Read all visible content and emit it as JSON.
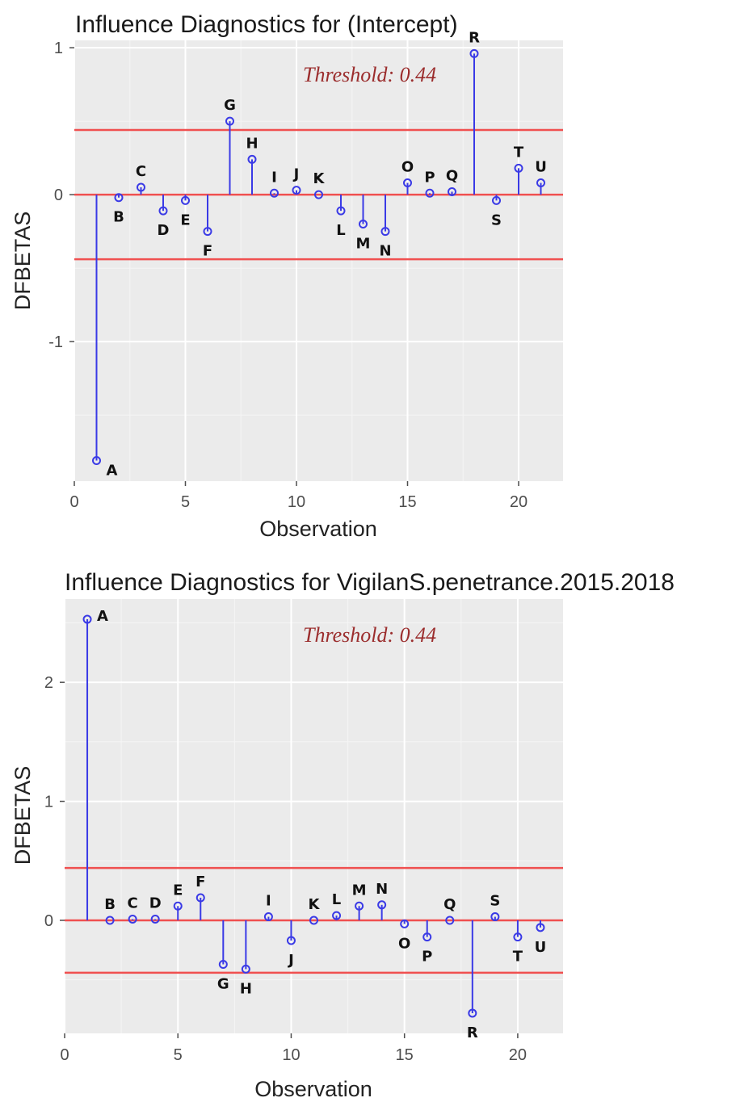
{
  "colors": {
    "panel": "#ebebeb",
    "grid_major": "#ffffff",
    "grid_minor": "#f5f5f5",
    "stem": "#3a3ae6",
    "point": "#3a3ae6",
    "threshold_line": "#f05050",
    "threshold_text": "#9b2d2d",
    "tick": "#4d4d4d"
  },
  "chart_data": [
    {
      "type": "lollipop",
      "title": "Influence Diagnostics for (Intercept)",
      "xlabel": "Observation",
      "ylabel": "DFBETAS",
      "threshold_text": "Threshold: 0.44",
      "threshold": 0.44,
      "xlim": [
        0,
        22
      ],
      "ylim": [
        -1.95,
        1.05
      ],
      "xticks": [
        0,
        5,
        10,
        15,
        20
      ],
      "yticks": [
        -1,
        0,
        1
      ],
      "grid": true,
      "points": [
        {
          "x": 1,
          "y": -1.81,
          "label": "A"
        },
        {
          "x": 2,
          "y": -0.02,
          "label": "B"
        },
        {
          "x": 3,
          "y": 0.05,
          "label": "C"
        },
        {
          "x": 4,
          "y": -0.11,
          "label": "D"
        },
        {
          "x": 5,
          "y": -0.04,
          "label": "E"
        },
        {
          "x": 6,
          "y": -0.25,
          "label": "F"
        },
        {
          "x": 7,
          "y": 0.5,
          "label": "G"
        },
        {
          "x": 8,
          "y": 0.24,
          "label": "H"
        },
        {
          "x": 9,
          "y": 0.01,
          "label": "I"
        },
        {
          "x": 10,
          "y": 0.03,
          "label": "J"
        },
        {
          "x": 11,
          "y": 0.0,
          "label": "K"
        },
        {
          "x": 12,
          "y": -0.11,
          "label": "L"
        },
        {
          "x": 13,
          "y": -0.2,
          "label": "M"
        },
        {
          "x": 14,
          "y": -0.25,
          "label": "N"
        },
        {
          "x": 15,
          "y": 0.08,
          "label": "O"
        },
        {
          "x": 16,
          "y": 0.01,
          "label": "P"
        },
        {
          "x": 17,
          "y": 0.02,
          "label": "Q"
        },
        {
          "x": 18,
          "y": 0.96,
          "label": "R"
        },
        {
          "x": 19,
          "y": -0.04,
          "label": "S"
        },
        {
          "x": 20,
          "y": 0.18,
          "label": "T"
        },
        {
          "x": 21,
          "y": 0.08,
          "label": "U"
        }
      ]
    },
    {
      "type": "lollipop",
      "title": "Influence Diagnostics for VigilanS.penetrance.2015.2018",
      "xlabel": "Observation",
      "ylabel": "DFBETAS",
      "threshold_text": "Threshold: 0.44",
      "threshold": 0.44,
      "xlim": [
        0,
        22
      ],
      "ylim": [
        -0.95,
        2.7
      ],
      "xticks": [
        0,
        5,
        10,
        15,
        20
      ],
      "yticks": [
        0,
        1,
        2
      ],
      "grid": true,
      "points": [
        {
          "x": 1,
          "y": 2.53,
          "label": "A"
        },
        {
          "x": 2,
          "y": 0.0,
          "label": "B"
        },
        {
          "x": 3,
          "y": 0.01,
          "label": "C"
        },
        {
          "x": 4,
          "y": 0.01,
          "label": "D"
        },
        {
          "x": 5,
          "y": 0.12,
          "label": "E"
        },
        {
          "x": 6,
          "y": 0.19,
          "label": "F"
        },
        {
          "x": 7,
          "y": -0.37,
          "label": "G"
        },
        {
          "x": 8,
          "y": -0.41,
          "label": "H"
        },
        {
          "x": 9,
          "y": 0.03,
          "label": "I"
        },
        {
          "x": 10,
          "y": -0.17,
          "label": "J"
        },
        {
          "x": 11,
          "y": 0.0,
          "label": "K"
        },
        {
          "x": 12,
          "y": 0.04,
          "label": "L"
        },
        {
          "x": 13,
          "y": 0.12,
          "label": "M"
        },
        {
          "x": 14,
          "y": 0.13,
          "label": "N"
        },
        {
          "x": 15,
          "y": -0.03,
          "label": "O"
        },
        {
          "x": 16,
          "y": -0.14,
          "label": "P"
        },
        {
          "x": 17,
          "y": 0.0,
          "label": "Q"
        },
        {
          "x": 18,
          "y": -0.78,
          "label": "R"
        },
        {
          "x": 19,
          "y": 0.03,
          "label": "S"
        },
        {
          "x": 20,
          "y": -0.14,
          "label": "T"
        },
        {
          "x": 21,
          "y": -0.06,
          "label": "U"
        }
      ]
    }
  ]
}
